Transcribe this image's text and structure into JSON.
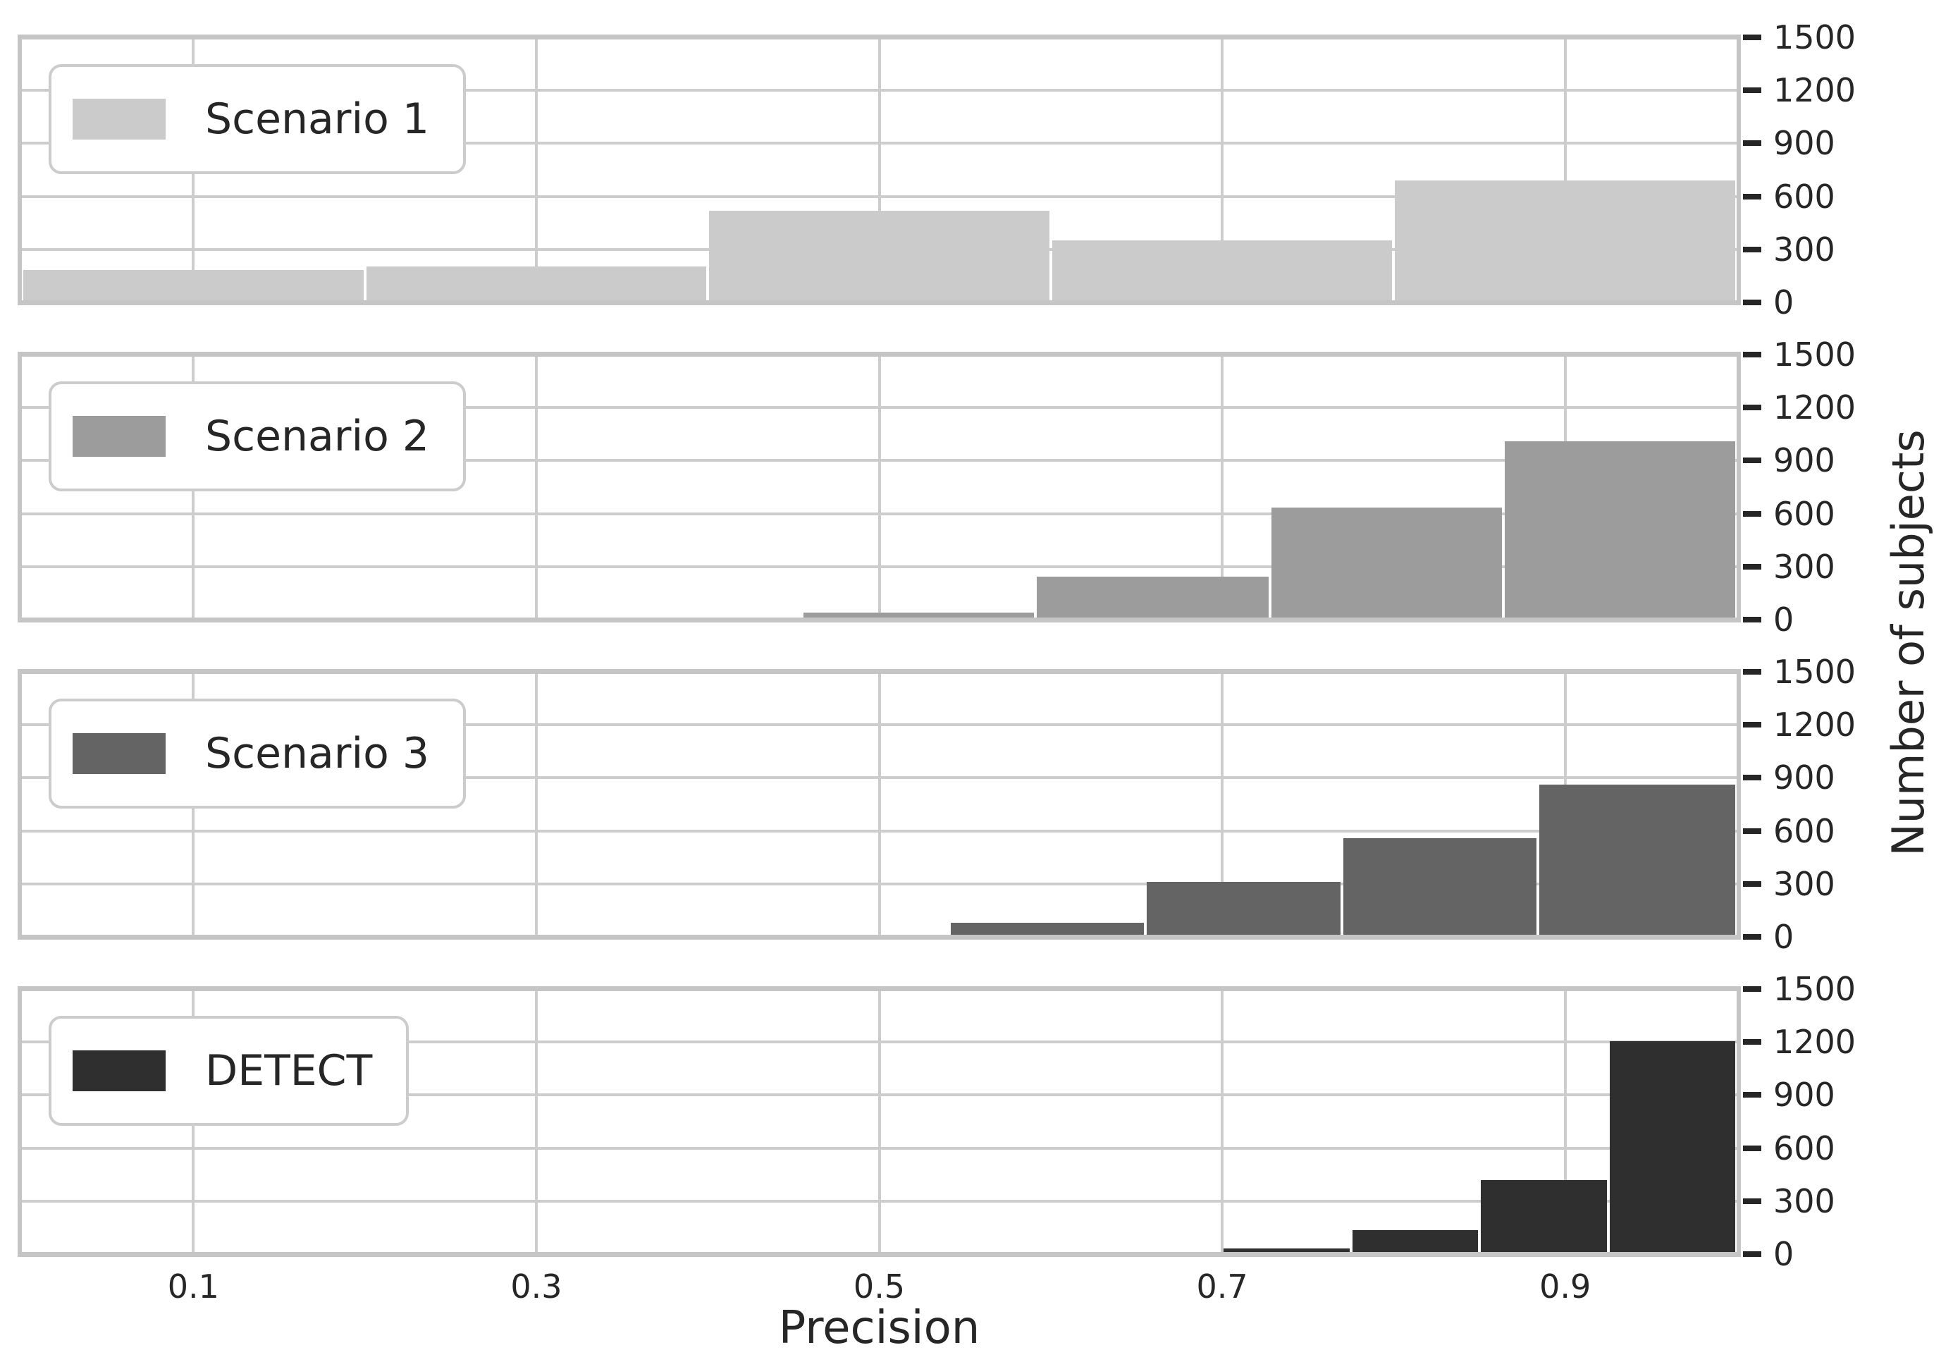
{
  "figure": {
    "xlabel": "Precision",
    "ylabel": "Number of subjects",
    "x_tick_labels": [
      "0.1",
      "0.3",
      "0.5",
      "0.7",
      "0.9"
    ],
    "x_tick_values": [
      0.1,
      0.3,
      0.5,
      0.7,
      0.9
    ],
    "y_tick_labels": [
      "0",
      "300",
      "600",
      "900",
      "1200",
      "1500"
    ],
    "y_tick_values": [
      0,
      300,
      600,
      900,
      1200,
      1500
    ],
    "x_range": [
      0.0,
      1.0
    ],
    "y_range": [
      0,
      1500
    ],
    "grid": "on",
    "legend_position": "upper left",
    "colors": {
      "background": "#ffffff",
      "gridline": "#cdcdcd",
      "spine": "#c5c5c5",
      "tick": "#262626",
      "text": "#262626",
      "legend_border": "#cccccc"
    }
  },
  "chart_data": [
    {
      "type": "bar",
      "name": "Scenario 1",
      "color": "#cbcbcb",
      "bin_edges": [
        0.0,
        0.2,
        0.4,
        0.6,
        0.8,
        1.0
      ],
      "counts": [
        185,
        205,
        520,
        350,
        690
      ]
    },
    {
      "type": "bar",
      "name": "Scenario 2",
      "color": "#9c9c9c",
      "bin_edges": [
        0.455,
        0.591,
        0.728,
        0.864,
        1.0
      ],
      "counts": [
        40,
        245,
        635,
        1010
      ]
    },
    {
      "type": "bar",
      "name": "Scenario 3",
      "color": "#646464",
      "bin_edges": [
        0.427,
        0.541,
        0.655,
        0.77,
        0.884,
        1.0
      ],
      "counts": [
        12,
        80,
        310,
        560,
        860
      ]
    },
    {
      "type": "bar",
      "name": "DETECT",
      "color": "#2f2f2f",
      "bin_edges": [
        0.7,
        0.775,
        0.85,
        0.925,
        1.0
      ],
      "counts": [
        30,
        135,
        420,
        1205
      ]
    }
  ]
}
